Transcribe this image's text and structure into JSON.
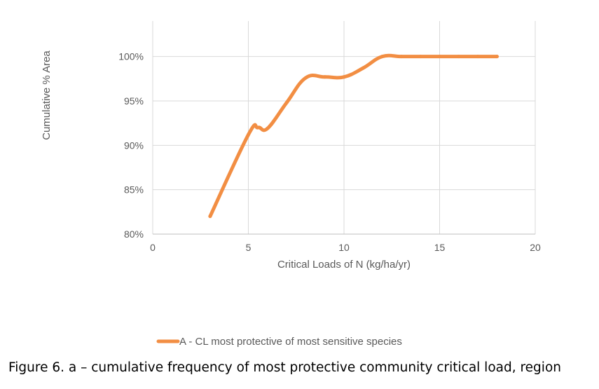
{
  "caption": "Figure 6. a – cumulative frequency of most protective community critical load, region",
  "colors": {
    "series": "#f28e43",
    "grid": "#d9d9d9",
    "text": "#595959"
  },
  "chart_data": {
    "type": "line",
    "title": "",
    "xlabel": "Critical Loads of N (kg/ha/yr)",
    "ylabel": "Cumulative % Area",
    "xlim": [
      0,
      20
    ],
    "ylim": [
      80,
      104
    ],
    "x_ticks": [
      0,
      5,
      10,
      15,
      20
    ],
    "x_tick_labels": [
      "0",
      "5",
      "10",
      "15",
      "20"
    ],
    "y_ticks": [
      80,
      85,
      90,
      95,
      100
    ],
    "y_tick_labels": [
      "80%",
      "85%",
      "90%",
      "95%",
      "100%"
    ],
    "grid": "vertical and horizontal",
    "smooth": true,
    "legend": "bottom",
    "series": [
      {
        "name": "A - CL most protective of most sensitive species",
        "color": "#f28e43",
        "x": [
          3,
          5,
          5.5,
          6,
          7,
          8,
          9,
          10,
          11,
          12,
          13,
          14,
          15,
          16,
          17,
          18
        ],
        "y": [
          82.0,
          91.2,
          92.0,
          91.9,
          94.8,
          97.6,
          97.7,
          97.7,
          98.7,
          100.0,
          100.0,
          100.0,
          100.0,
          100.0,
          100.0,
          100.0
        ]
      }
    ]
  }
}
